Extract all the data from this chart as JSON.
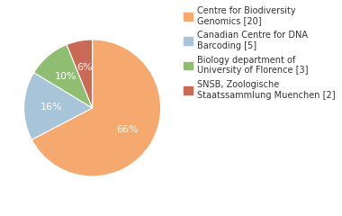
{
  "labels": [
    "Centre for Biodiversity\nGenomics [20]",
    "Canadian Centre for DNA\nBarcoding [5]",
    "Biology department of\nUniversity of Florence [3]",
    "SNSB, Zoologische\nStaatssammlung Muenchen [2]"
  ],
  "values": [
    66,
    16,
    10,
    6
  ],
  "colors": [
    "#F5A96E",
    "#A8C4D8",
    "#8FBD72",
    "#C96A56"
  ],
  "pct_labels": [
    "66%",
    "16%",
    "10%",
    "6%"
  ],
  "background_color": "#ffffff",
  "text_color": "#333333",
  "fontsize": 8,
  "legend_fontsize": 7
}
